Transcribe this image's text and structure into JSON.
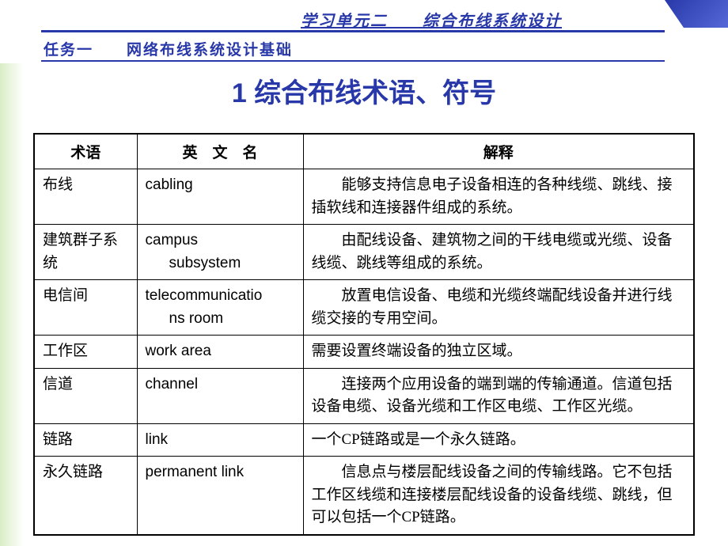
{
  "header": {
    "unit": "学习单元二　　综合布线系统设计",
    "task": "任务一　　网络布线系统设计基础"
  },
  "title": "1 综合布线术语、符号",
  "table": {
    "headers": {
      "term": "术语",
      "english": "英　文　名",
      "description": "解释"
    },
    "rows": [
      {
        "term": "布线",
        "english": "cabling",
        "english2": "",
        "description": "能够支持信息电子设备相连的各种线缆、跳线、接插软线和连接器件组成的系统。"
      },
      {
        "term": "建筑群子系统",
        "english": "campus",
        "english2": "subsystem",
        "description": "由配线设备、建筑物之间的干线电缆或光缆、设备线缆、跳线等组成的系统。"
      },
      {
        "term": "电信间",
        "english": "telecommunicatio",
        "english2": "ns room",
        "description": "放置电信设备、电缆和光缆终端配线设备并进行线缆交接的专用空间。"
      },
      {
        "term": "工作区",
        "english": "work area",
        "english2": "",
        "description": "需要设置终端设备的独立区域。"
      },
      {
        "term": "信道",
        "english": "channel",
        "english2": "",
        "description": "连接两个应用设备的端到端的传输通道。信道包括设备电缆、设备光缆和工作区电缆、工作区光缆。"
      },
      {
        "term": "链路",
        "english": "link",
        "english2": "",
        "description": "一个CP链路或是一个永久链路。"
      },
      {
        "term": "永久链路",
        "english": "permanent link",
        "english2": "",
        "description": "信息点与楼层配线设备之间的传输线路。它不包括工作区线缆和连接楼层配线设备的设备线缆、跳线，但可以包括一个CP链路。"
      }
    ]
  },
  "colors": {
    "primary": "#2838a8",
    "border": "#000000",
    "background": "#ffffff"
  }
}
